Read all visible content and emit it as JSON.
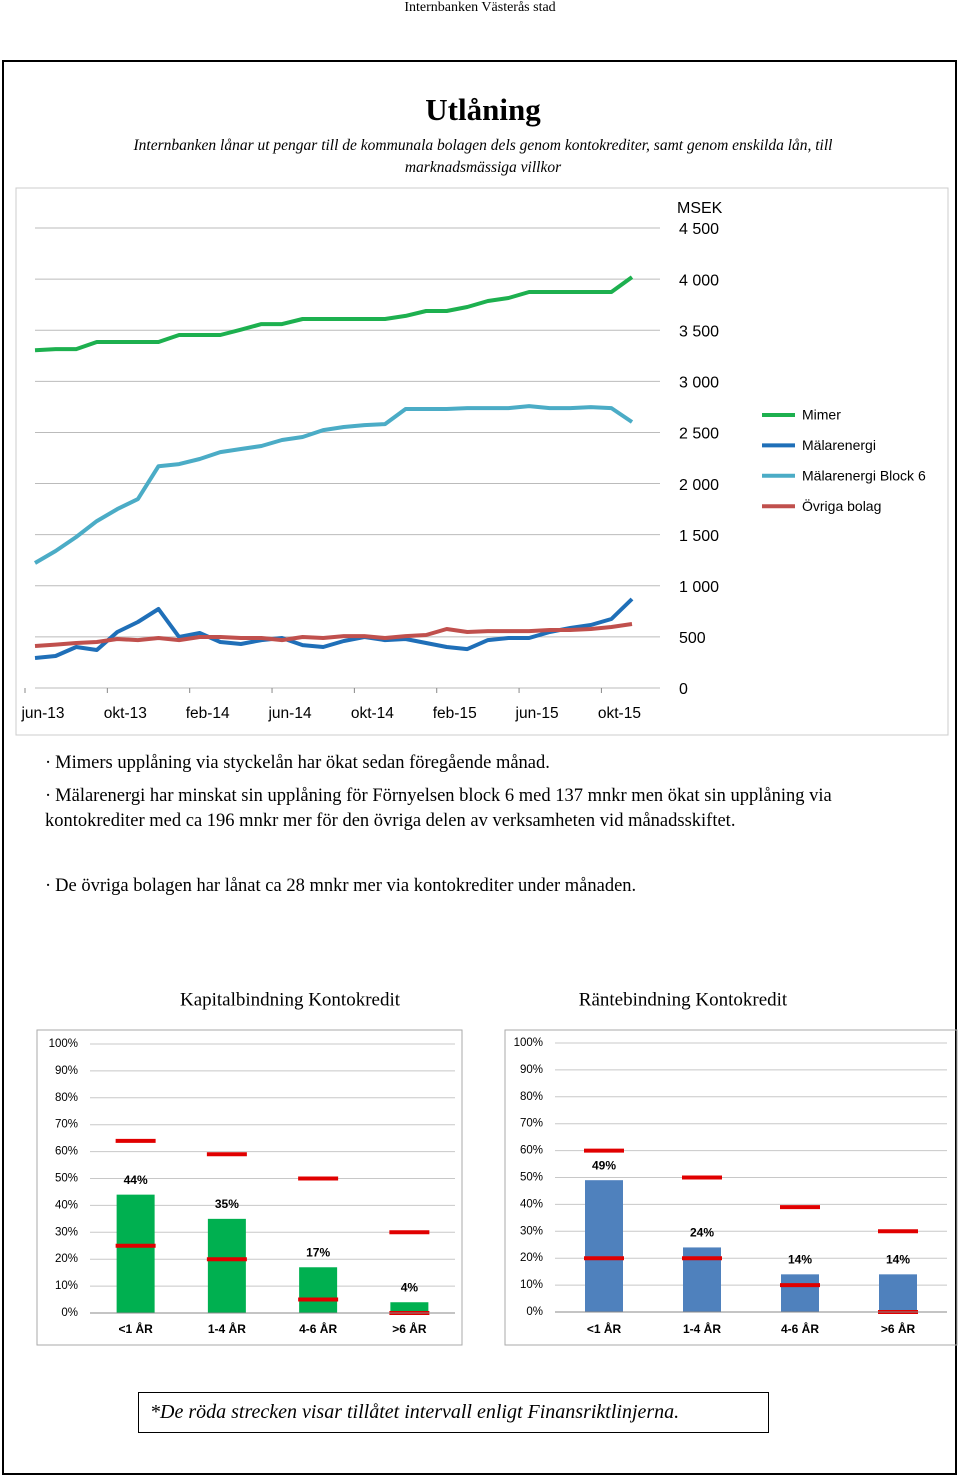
{
  "header": "Internbanken Västerås stad",
  "title": "Utlåning",
  "subtitle": "Internbanken lånar ut pengar till de kommunala bolagen dels genom kontokrediter, samt genom enskilda lån, till marknadsmässiga villkor",
  "chart_data": [
    {
      "type": "line",
      "y_label": "MSEK",
      "categories": [
        "jun-13",
        null,
        null,
        null,
        "okt-13",
        null,
        null,
        null,
        "feb-14",
        null,
        null,
        null,
        "jun-14",
        null,
        null,
        null,
        "okt-14",
        null,
        null,
        null,
        "feb-15",
        null,
        null,
        null,
        "jun-15",
        null,
        null,
        null,
        "okt-15",
        null
      ],
      "series": [
        {
          "name": "Mimer",
          "color": "#1db04f",
          "values": [
            3305,
            3315,
            3315,
            3385,
            3385,
            3385,
            3385,
            3453,
            3453,
            3453,
            3505,
            3560,
            3560,
            3610,
            3610,
            3610,
            3610,
            3610,
            3640,
            3688,
            3688,
            3727,
            3786,
            3815,
            3874,
            3874,
            3874,
            3874,
            3874,
            4020
          ]
        },
        {
          "name": "Mälarenergi",
          "color": "#1f6fb8",
          "values": [
            293,
            313,
            401,
            372,
            548,
            646,
            773,
            499,
            538,
            450,
            430,
            469,
            489,
            420,
            401,
            460,
            499,
            469,
            479,
            440,
            401,
            381,
            469,
            489,
            489,
            548,
            587,
            616,
            675,
            871
          ]
        },
        {
          "name": "Mälarenergi Block 6",
          "color": "#4bacc6",
          "values": [
            1223,
            1340,
            1477,
            1633,
            1750,
            1848,
            2170,
            2190,
            2240,
            2308,
            2338,
            2367,
            2426,
            2455,
            2523,
            2553,
            2572,
            2582,
            2729,
            2729,
            2729,
            2738,
            2738,
            2738,
            2758,
            2738,
            2738,
            2748,
            2738,
            2602
          ]
        },
        {
          "name": "Övriga bolag",
          "color": "#c0504d",
          "values": [
            411,
            425,
            440,
            450,
            479,
            469,
            489,
            469,
            499,
            499,
            489,
            489,
            469,
            499,
            489,
            508,
            508,
            489,
            508,
            518,
            577,
            548,
            557,
            557,
            557,
            567,
            567,
            577,
            597,
            626
          ]
        }
      ],
      "ylim": [
        0,
        4500
      ],
      "yticks": [
        0,
        500,
        {
          "value": 1000,
          "label": "1 000"
        },
        {
          "value": 1500,
          "label": "1 500"
        },
        {
          "value": 2000,
          "label": "2 000"
        },
        {
          "value": 2500,
          "label": "2 500"
        },
        {
          "value": 3000,
          "label": "3 000"
        },
        {
          "value": 3500,
          "label": "3 500"
        },
        {
          "value": 4000,
          "label": "4 000"
        },
        {
          "value": 4500,
          "label": "4 500"
        }
      ],
      "grid": true,
      "legend": "right"
    },
    {
      "type": "bar",
      "title": "Kapitalbindning Kontokredit",
      "categories": [
        "<1 ÅR",
        "1-4 ÅR",
        "4-6 ÅR",
        ">6 ÅR"
      ],
      "values": [
        44,
        35,
        17,
        4
      ],
      "value_labels": [
        "44%",
        "35%",
        "17%",
        "4%"
      ],
      "color": "#00b050",
      "upper_limits": [
        64,
        59,
        50,
        30
      ],
      "lower_limits": [
        25,
        20,
        5,
        0
      ],
      "limit_color": "#e00000",
      "ylim": [
        0,
        100
      ],
      "yticks": [
        {
          "value": 0,
          "label": "0%"
        },
        {
          "value": 10,
          "label": "10%"
        },
        {
          "value": 20,
          "label": "20%"
        },
        {
          "value": 30,
          "label": "30%"
        },
        {
          "value": 40,
          "label": "40%"
        },
        {
          "value": 50,
          "label": "50%"
        },
        {
          "value": 60,
          "label": "60%"
        },
        {
          "value": 70,
          "label": "70%"
        },
        {
          "value": 80,
          "label": "80%"
        },
        {
          "value": 90,
          "label": "90%"
        },
        {
          "value": 100,
          "label": "100%"
        }
      ],
      "grid": true
    },
    {
      "type": "bar",
      "title": "Räntebindning Kontokredit",
      "categories": [
        "<1 ÅR",
        "1-4 ÅR",
        "4-6 ÅR",
        ">6 ÅR"
      ],
      "values": [
        49,
        24,
        14,
        14
      ],
      "value_labels": [
        "49%",
        "24%",
        "14%",
        "14%"
      ],
      "color": "#4f81bd",
      "upper_limits": [
        60,
        50,
        39,
        30
      ],
      "lower_limits": [
        20,
        20,
        10,
        0
      ],
      "limit_color": "#e00000",
      "ylim": [
        0,
        100
      ],
      "yticks": [
        {
          "value": 0,
          "label": "0%"
        },
        {
          "value": 10,
          "label": "10%"
        },
        {
          "value": 20,
          "label": "20%"
        },
        {
          "value": 30,
          "label": "30%"
        },
        {
          "value": 40,
          "label": "40%"
        },
        {
          "value": 50,
          "label": "50%"
        },
        {
          "value": 60,
          "label": "60%"
        },
        {
          "value": 70,
          "label": "70%"
        },
        {
          "value": 80,
          "label": "80%"
        },
        {
          "value": 90,
          "label": "90%"
        },
        {
          "value": 100,
          "label": "100%"
        }
      ],
      "grid": true
    }
  ],
  "bullets": [
    "Mimers upplåning via styckelån har ökat sedan föregående månad.",
    "Mälarenergi har minskat sin upplåning för Förnyelsen block 6 med 137 mnkr men ökat sin upplåning via kontokrediter med ca 196 mnkr mer för den övriga delen av verksamheten vid månadsskiftet.",
    "De övriga bolagen har lånat ca 28 mnkr mer via kontokrediter under månaden."
  ],
  "footnote": "*De röda strecken visar tillåtet intervall enligt Finansriktlinjerna."
}
